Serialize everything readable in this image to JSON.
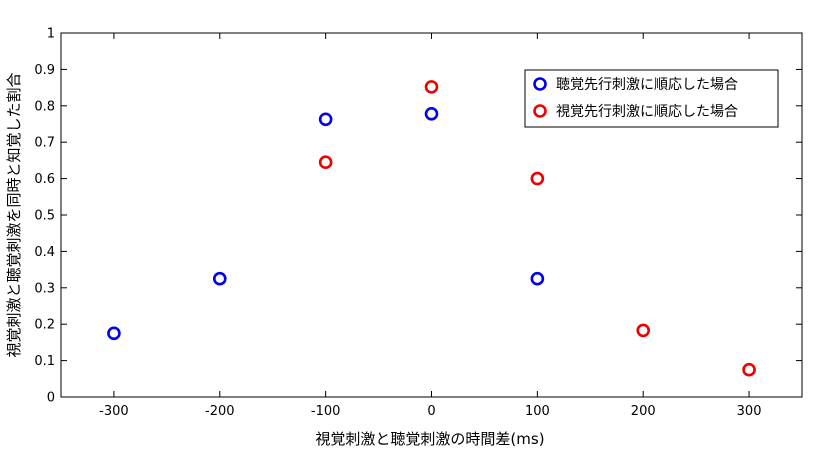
{
  "chart_data": {
    "type": "scatter",
    "xlabel": "視覚刺激と聴覚刺激の時間差(ms)",
    "ylabel": "視覚刺激と聴覚刺激を同時と知覚した割合",
    "xlim": [
      -350,
      350
    ],
    "ylim": [
      0,
      1
    ],
    "xticks": [
      -300,
      -200,
      -100,
      0,
      100,
      200,
      300
    ],
    "yticks": [
      0,
      0.1,
      0.2,
      0.3,
      0.4,
      0.5,
      0.6,
      0.7,
      0.8,
      0.9,
      1
    ],
    "xtick_labels": [
      "-300",
      "-200",
      "-100",
      "0",
      "100",
      "200",
      "300"
    ],
    "ytick_labels": [
      "0",
      "0.1",
      "0.2",
      "0.3",
      "0.4",
      "0.5",
      "0.6",
      "0.7",
      "0.8",
      "0.9",
      "1"
    ],
    "grid": false,
    "legend_position": "top-right",
    "series": [
      {
        "name": "聴覚先行刺激に順応した場合",
        "color": "#0000ee",
        "marker": "open-circle",
        "x": [
          -300,
          -200,
          -100,
          0,
          100
        ],
        "y": [
          0.175,
          0.325,
          0.763,
          0.778,
          0.325
        ]
      },
      {
        "name": "視覚先行刺激に順応した場合",
        "color": "#ee0000",
        "marker": "open-circle",
        "x": [
          -100,
          0,
          100,
          200,
          300
        ],
        "y": [
          0.645,
          0.852,
          0.6,
          0.183,
          0.075
        ]
      }
    ]
  }
}
